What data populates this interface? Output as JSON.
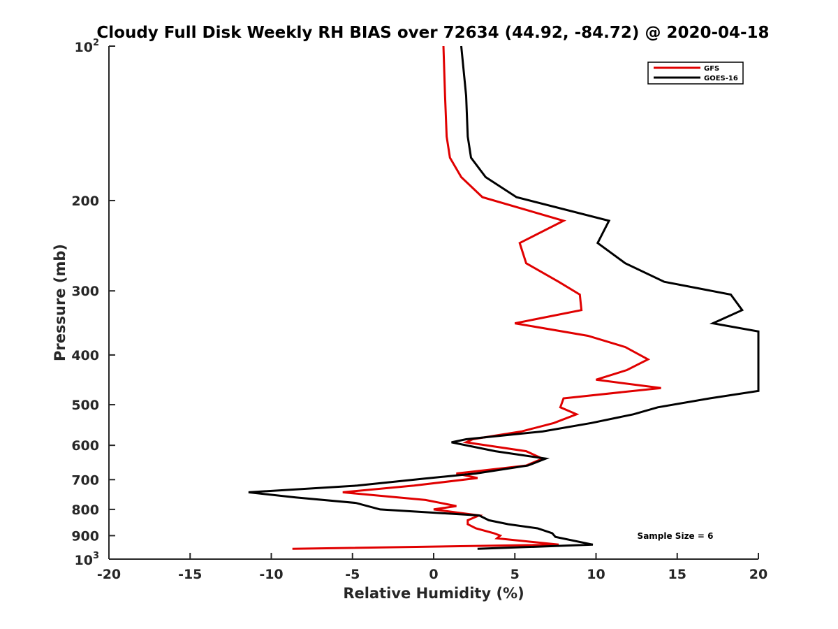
{
  "chart_data": {
    "type": "line",
    "title": "Cloudy Full Disk Weekly RH BIAS over 72634 (44.92, -84.72) @ 2020-04-18",
    "xlabel": "Relative Humidity (%)",
    "ylabel": "Pressure (mb)",
    "xlim": [
      -20,
      20
    ],
    "ylim": [
      1000,
      100
    ],
    "y_scale": "log",
    "x_ticks": [
      "-20",
      "-15",
      "-10",
      "-5",
      "0",
      "5",
      "10",
      "15",
      "20"
    ],
    "y_ticks": [
      {
        "value": 100,
        "base": "10",
        "exp": "2"
      },
      {
        "value": 200,
        "label": "200"
      },
      {
        "value": 300,
        "label": "300"
      },
      {
        "value": 400,
        "label": "400"
      },
      {
        "value": 500,
        "label": "500"
      },
      {
        "value": 600,
        "label": "600"
      },
      {
        "value": 700,
        "label": "700"
      },
      {
        "value": 800,
        "label": "800"
      },
      {
        "value": 900,
        "label": "900"
      },
      {
        "value": 1000,
        "base": "10",
        "exp": "3"
      }
    ],
    "grid": false,
    "legend_position": "top-right",
    "annotation": "Sample Size = 6",
    "series": [
      {
        "name": "GFS",
        "color": "#e00000",
        "points": [
          [
            0.6,
            100
          ],
          [
            0.7,
            125
          ],
          [
            0.8,
            150
          ],
          [
            1.0,
            165
          ],
          [
            1.7,
            180
          ],
          [
            3.0,
            197
          ],
          [
            8.0,
            219
          ],
          [
            5.3,
            242
          ],
          [
            5.7,
            265
          ],
          [
            7.7,
            288
          ],
          [
            9.0,
            305
          ],
          [
            9.1,
            327
          ],
          [
            5.0,
            347
          ],
          [
            9.5,
            367
          ],
          [
            11.8,
            386
          ],
          [
            13.2,
            408
          ],
          [
            11.9,
            428
          ],
          [
            10.0,
            447
          ],
          [
            14.0,
            464
          ],
          [
            8.0,
            486
          ],
          [
            7.8,
            506
          ],
          [
            8.8,
            522
          ],
          [
            7.4,
            543
          ],
          [
            5.4,
            564
          ],
          [
            2.4,
            584
          ],
          [
            2.0,
            592
          ],
          [
            5.7,
            616
          ],
          [
            6.7,
            637
          ],
          [
            5.7,
            657
          ],
          [
            1.4,
            681
          ],
          [
            2.7,
            695
          ],
          [
            -1.2,
            719
          ],
          [
            -5.6,
            741
          ],
          [
            -0.5,
            767
          ],
          [
            1.4,
            788
          ],
          [
            0.0,
            800
          ],
          [
            2.8,
            822
          ],
          [
            2.1,
            840
          ],
          [
            2.1,
            855
          ],
          [
            2.6,
            871
          ],
          [
            3.7,
            890
          ],
          [
            4.1,
            900
          ],
          [
            3.9,
            911
          ],
          [
            7.7,
            937
          ],
          [
            -8.7,
            955
          ]
        ]
      },
      {
        "name": "GOES-16",
        "color": "#000000",
        "points": [
          [
            1.7,
            100
          ],
          [
            2.0,
            125
          ],
          [
            2.1,
            150
          ],
          [
            2.3,
            165
          ],
          [
            3.2,
            180
          ],
          [
            5.1,
            197
          ],
          [
            10.8,
            219
          ],
          [
            10.1,
            242
          ],
          [
            11.8,
            265
          ],
          [
            14.2,
            288
          ],
          [
            18.3,
            305
          ],
          [
            19.0,
            327
          ],
          [
            17.2,
            347
          ],
          [
            20.0,
            360
          ],
          [
            20.0,
            470
          ],
          [
            17.0,
            486
          ],
          [
            13.8,
            506
          ],
          [
            12.3,
            522
          ],
          [
            9.7,
            543
          ],
          [
            6.7,
            564
          ],
          [
            2.0,
            584
          ],
          [
            1.1,
            592
          ],
          [
            3.8,
            616
          ],
          [
            6.9,
            637
          ],
          [
            5.8,
            657
          ],
          [
            2.6,
            681
          ],
          [
            -0.6,
            697
          ],
          [
            -4.7,
            719
          ],
          [
            -11.4,
            741
          ],
          [
            -8.5,
            758
          ],
          [
            -4.8,
            777
          ],
          [
            -3.3,
            800
          ],
          [
            2.8,
            822
          ],
          [
            3.4,
            840
          ],
          [
            4.6,
            855
          ],
          [
            6.4,
            871
          ],
          [
            7.3,
            890
          ],
          [
            7.5,
            905
          ],
          [
            9.8,
            937
          ],
          [
            2.7,
            955
          ]
        ]
      }
    ]
  }
}
